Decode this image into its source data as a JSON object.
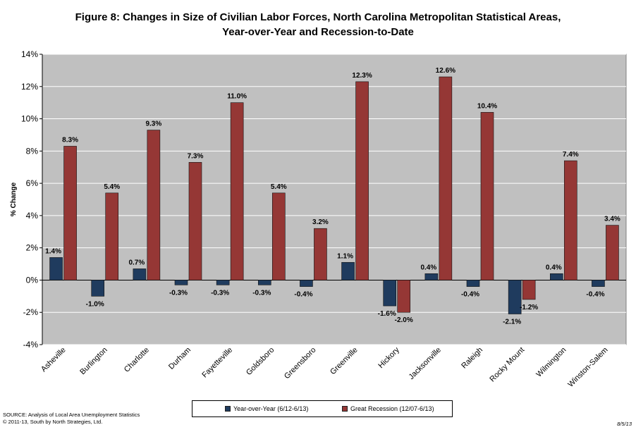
{
  "title_line1": "Figure 8: Changes in Size of Civilian Labor Forces, North Carolina Metropolitan Statistical Areas,",
  "title_line2": "Year-over-Year and Recession-to-Date",
  "source_line1": "SOURCE:  Analysis of Local Area Unemployment Statistics",
  "source_line2": "© 2011-13, South by North Strategies, Ltd.",
  "date": "8/5/13",
  "colors": {
    "plot_bg": "#c0c0c0",
    "series1": "#1f3b5e",
    "series2": "#953735"
  },
  "chart_data": {
    "type": "bar",
    "title": "Figure 8: Changes in Size of Civilian Labor Forces, North Carolina Metropolitan Statistical Areas, Year-over-Year and Recession-to-Date",
    "xlabel": "",
    "ylabel": "% Change",
    "ylim": [
      -4,
      14
    ],
    "yticks": [
      "-4%",
      "-2%",
      "0%",
      "2%",
      "4%",
      "6%",
      "8%",
      "10%",
      "12%",
      "14%"
    ],
    "grid": true,
    "legend_position": "bottom",
    "categories": [
      "Asheville",
      "Burlington",
      "Charlotte",
      "Durham",
      "Fayetteville",
      "Goldsboro",
      "Greensboro",
      "Greenville",
      "Hickory",
      "Jacksonville",
      "Raleigh",
      "Rocky Mount",
      "Wilmington",
      "Winston-Salem"
    ],
    "series": [
      {
        "name": "Year-over-Year (6/12-6/13)",
        "values": [
          1.4,
          -1.0,
          0.7,
          -0.3,
          -0.3,
          -0.3,
          -0.4,
          1.1,
          -1.6,
          0.4,
          -0.4,
          -2.1,
          0.4,
          -0.4
        ],
        "labels": [
          "1.4%",
          "-1.0%",
          "0.7%",
          "-0.3%",
          "-0.3%",
          "-0.3%",
          "-0.4%",
          "1.1%",
          "-1.6%",
          "0.4%",
          "-0.4%",
          "-2.1%",
          "0.4%",
          "-0.4%"
        ]
      },
      {
        "name": "Great Recession (12/07-6/13)",
        "values": [
          8.3,
          5.4,
          9.3,
          7.3,
          11.0,
          5.4,
          3.2,
          12.3,
          -2.0,
          12.6,
          10.4,
          -1.2,
          7.4,
          3.4
        ],
        "labels": [
          "8.3%",
          "5.4%",
          "9.3%",
          "7.3%",
          "11.0%",
          "5.4%",
          "3.2%",
          "12.3%",
          "-2.0%",
          "12.6%",
          "10.4%",
          "-1.2%",
          "7.4%",
          "3.4%"
        ]
      }
    ]
  }
}
